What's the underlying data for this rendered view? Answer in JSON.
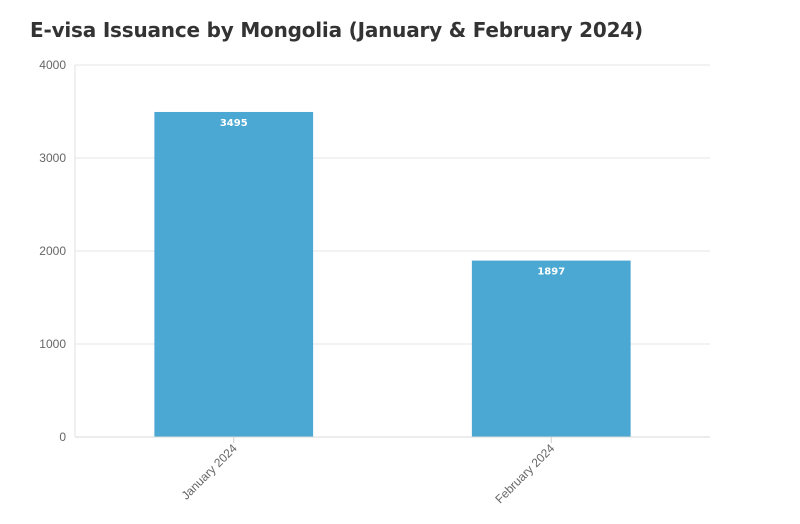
{
  "chart_data": {
    "type": "bar",
    "title": "E-visa Issuance by Mongolia (January & February 2024)",
    "categories": [
      "January 2024",
      "February 2024"
    ],
    "values": [
      3495,
      1897
    ],
    "xlabel": "",
    "ylabel": "",
    "ylim": [
      0,
      4000
    ],
    "yticks": [
      0,
      1000,
      2000,
      3000,
      4000
    ],
    "grid": true,
    "legend": "none",
    "bar_color": "#4aa8d2"
  }
}
